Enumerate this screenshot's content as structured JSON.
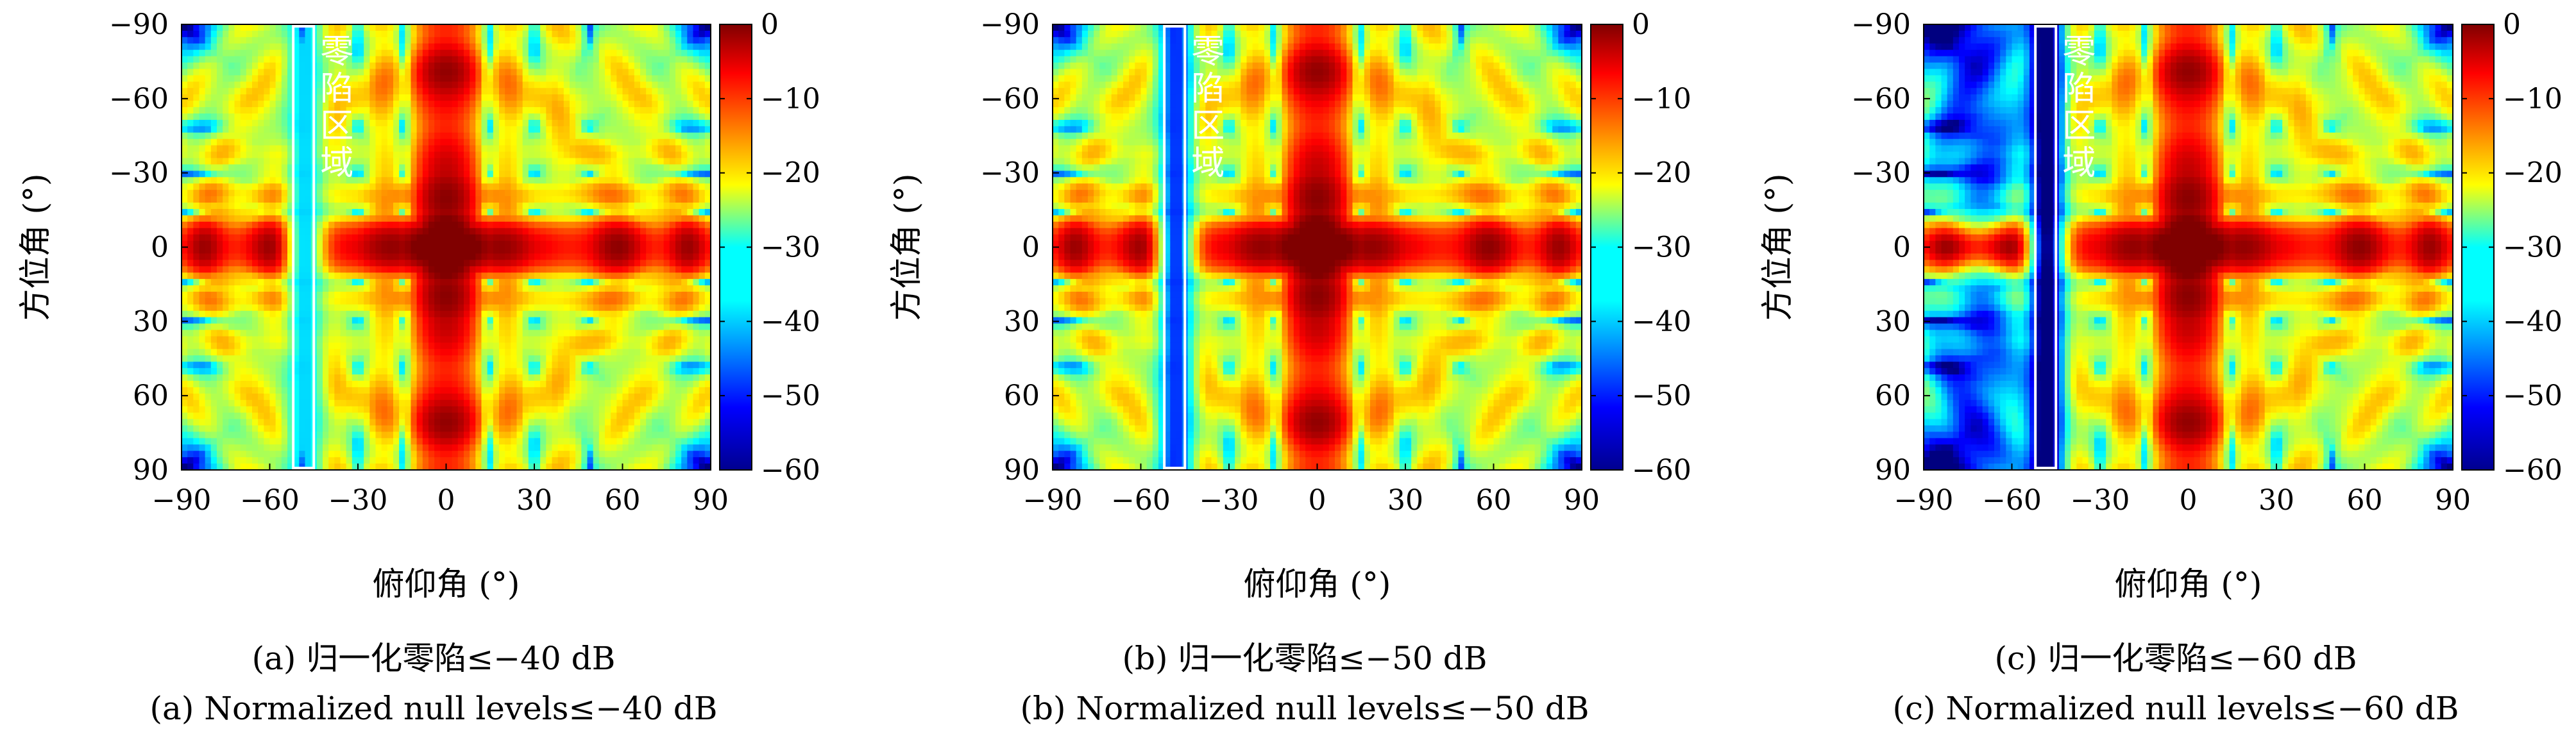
{
  "chart_data": [
    {
      "type": "heatmap",
      "xlabel": "俯仰角 (°)",
      "ylabel": "方位角 (°)",
      "xlim": [
        -90,
        90
      ],
      "ylim": [
        -90,
        90
      ],
      "y_axis_inverted": true,
      "xticks": [
        "−90",
        "−60",
        "−30",
        "0",
        "30",
        "60",
        "90"
      ],
      "yticks": [
        "−90",
        "−60",
        "−30",
        "0",
        "30",
        "60",
        "90"
      ],
      "colorbar_ticks": [
        "0",
        "−10",
        "−20",
        "−30",
        "−40",
        "−50",
        "−60"
      ],
      "colorbar_range": [
        -60,
        0
      ],
      "colormap": "jet",
      "null_region_label": "零陷区域",
      "null_region_x": [
        -52,
        -45
      ],
      "null_level_db": -40,
      "caption_cn": "(a) 归一化零陷≤−40 dB",
      "caption_en": "(a) Normalized null levels≤−40 dB"
    },
    {
      "type": "heatmap",
      "xlabel": "俯仰角 (°)",
      "ylabel": "方位角 (°)",
      "xlim": [
        -90,
        90
      ],
      "ylim": [
        -90,
        90
      ],
      "y_axis_inverted": true,
      "xticks": [
        "−90",
        "−60",
        "−30",
        "0",
        "30",
        "60",
        "90"
      ],
      "yticks": [
        "−90",
        "−60",
        "−30",
        "0",
        "30",
        "60",
        "90"
      ],
      "colorbar_ticks": [
        "0",
        "−10",
        "−20",
        "−30",
        "−40",
        "−50",
        "−60"
      ],
      "colorbar_range": [
        -60,
        0
      ],
      "colormap": "jet",
      "null_region_label": "零陷区域",
      "null_region_x": [
        -52,
        -45
      ],
      "null_level_db": -50,
      "caption_cn": "(b) 归一化零陷≤−50 dB",
      "caption_en": "(b) Normalized null levels≤−50 dB"
    },
    {
      "type": "heatmap",
      "xlabel": "俯仰角 (°)",
      "ylabel": "方位角 (°)",
      "xlim": [
        -90,
        90
      ],
      "ylim": [
        -90,
        90
      ],
      "y_axis_inverted": true,
      "xticks": [
        "−90",
        "−60",
        "−30",
        "0",
        "30",
        "60",
        "90"
      ],
      "yticks": [
        "−90",
        "−60",
        "−30",
        "0",
        "30",
        "60",
        "90"
      ],
      "colorbar_ticks": [
        "0",
        "−10",
        "−20",
        "−30",
        "−40",
        "−50",
        "−60"
      ],
      "colorbar_range": [
        -60,
        0
      ],
      "colormap": "jet",
      "null_region_label": "零陷区域",
      "null_region_x": [
        -52,
        -45
      ],
      "null_level_db": -60,
      "caption_cn": "(c) 归一化零陷≤−60 dB",
      "caption_en": "(c) Normalized null levels≤−60 dB"
    }
  ]
}
